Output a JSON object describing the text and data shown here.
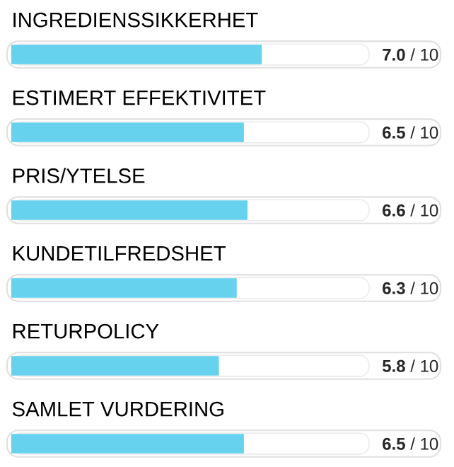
{
  "chart_data": {
    "type": "bar",
    "orientation": "horizontal",
    "categories": [
      "INGREDIENSSIKKERHET",
      "ESTIMERT EFFEKTIVITET",
      "PRIS/YTELSE",
      "KUNDETILFREDSHET",
      "RETURPOLICY",
      "SAMLET VURDERING"
    ],
    "values": [
      7.0,
      6.5,
      6.6,
      6.3,
      5.8,
      6.5
    ],
    "value_labels": [
      "**7.0** / 10",
      "**6.5** / 10",
      "**6.6** / 10",
      "**6.3** / 10",
      "**5.8** / 10",
      "**6.5** / 10"
    ],
    "color": "#66d2ee",
    "xlim": [
      0,
      10
    ]
  }
}
